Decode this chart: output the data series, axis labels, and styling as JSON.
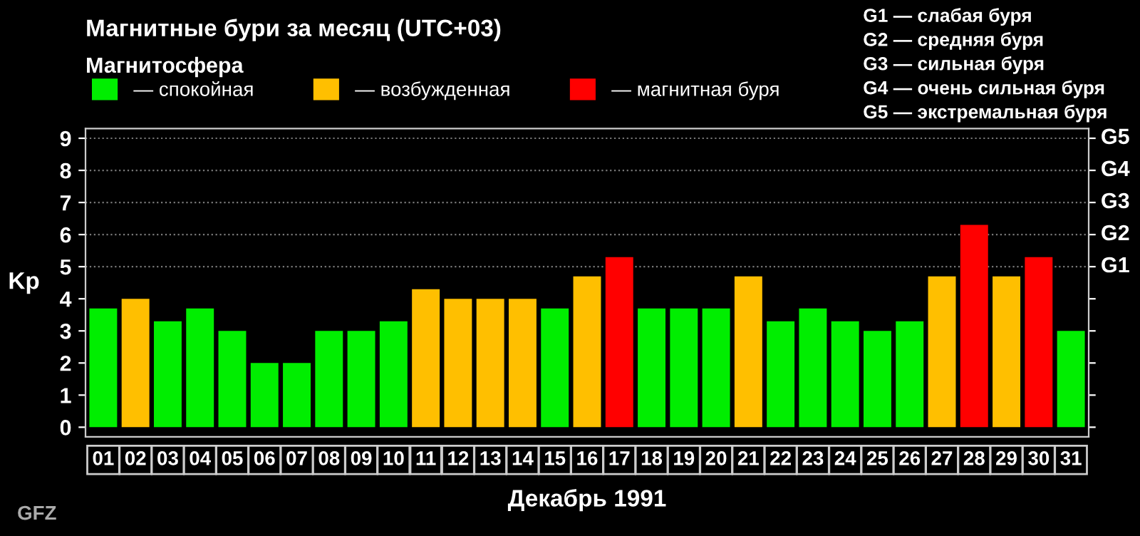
{
  "chart_data": {
    "type": "bar",
    "title": "Магнитные бури за месяц (UTC+03)",
    "xlabel": "Декабрь 1991",
    "ylabel": "Kp",
    "legend_title": "Магнитосфера",
    "legend": "top left",
    "categories": [
      "01",
      "02",
      "03",
      "04",
      "05",
      "06",
      "07",
      "08",
      "09",
      "10",
      "11",
      "12",
      "13",
      "14",
      "15",
      "16",
      "17",
      "18",
      "19",
      "20",
      "21",
      "22",
      "23",
      "24",
      "25",
      "26",
      "27",
      "28",
      "29",
      "30",
      "31"
    ],
    "series": [
      {
        "name": "— спокойная",
        "color": "#00ee00",
        "values": [
          3.7,
          null,
          3.3,
          3.7,
          3.0,
          2.0,
          2.0,
          3.0,
          3.0,
          3.3,
          null,
          null,
          null,
          null,
          3.7,
          null,
          null,
          3.7,
          3.7,
          3.7,
          null,
          3.3,
          3.7,
          3.3,
          3.0,
          3.3,
          null,
          null,
          null,
          null,
          3.0
        ]
      },
      {
        "name": "— возбужденная",
        "color": "#ffbf00",
        "values": [
          null,
          4.0,
          null,
          null,
          null,
          null,
          null,
          null,
          null,
          null,
          4.3,
          4.0,
          4.0,
          4.0,
          null,
          4.7,
          null,
          null,
          null,
          null,
          4.7,
          null,
          null,
          null,
          null,
          null,
          4.7,
          null,
          4.7,
          null,
          null
        ]
      },
      {
        "name": "— магнитная буря",
        "color": "#ff0000",
        "values": [
          null,
          null,
          null,
          null,
          null,
          null,
          null,
          null,
          null,
          null,
          null,
          null,
          null,
          null,
          null,
          null,
          5.3,
          null,
          null,
          null,
          null,
          null,
          null,
          null,
          null,
          null,
          null,
          6.3,
          null,
          5.3,
          null
        ]
      }
    ],
    "ylim": [
      -0.3,
      9.3
    ],
    "yticks": [
      0,
      1,
      2,
      3,
      4,
      5,
      6,
      7,
      8,
      9
    ],
    "ref_lines": [
      {
        "axis": "y",
        "value": 5,
        "label": "G1",
        "line_style": "dotted",
        "color": "#777777"
      },
      {
        "axis": "y",
        "value": 6,
        "label": "G2",
        "line_style": "dotted",
        "color": "#777777"
      },
      {
        "axis": "y",
        "value": 7,
        "label": "G3",
        "line_style": "dotted",
        "color": "#777777"
      },
      {
        "axis": "y",
        "value": 8,
        "label": "G4",
        "line_style": "dotted",
        "color": "#777777"
      },
      {
        "axis": "y",
        "value": 9,
        "label": "G5",
        "line_style": "dotted",
        "color": "#777777"
      }
    ],
    "annotations": [
      "G1 — слабая буря",
      "G2 — средняя буря",
      "G3 — сильная буря",
      "G4 — очень сильная буря",
      "G5 — экстремальная буря",
      "GFZ"
    ]
  }
}
